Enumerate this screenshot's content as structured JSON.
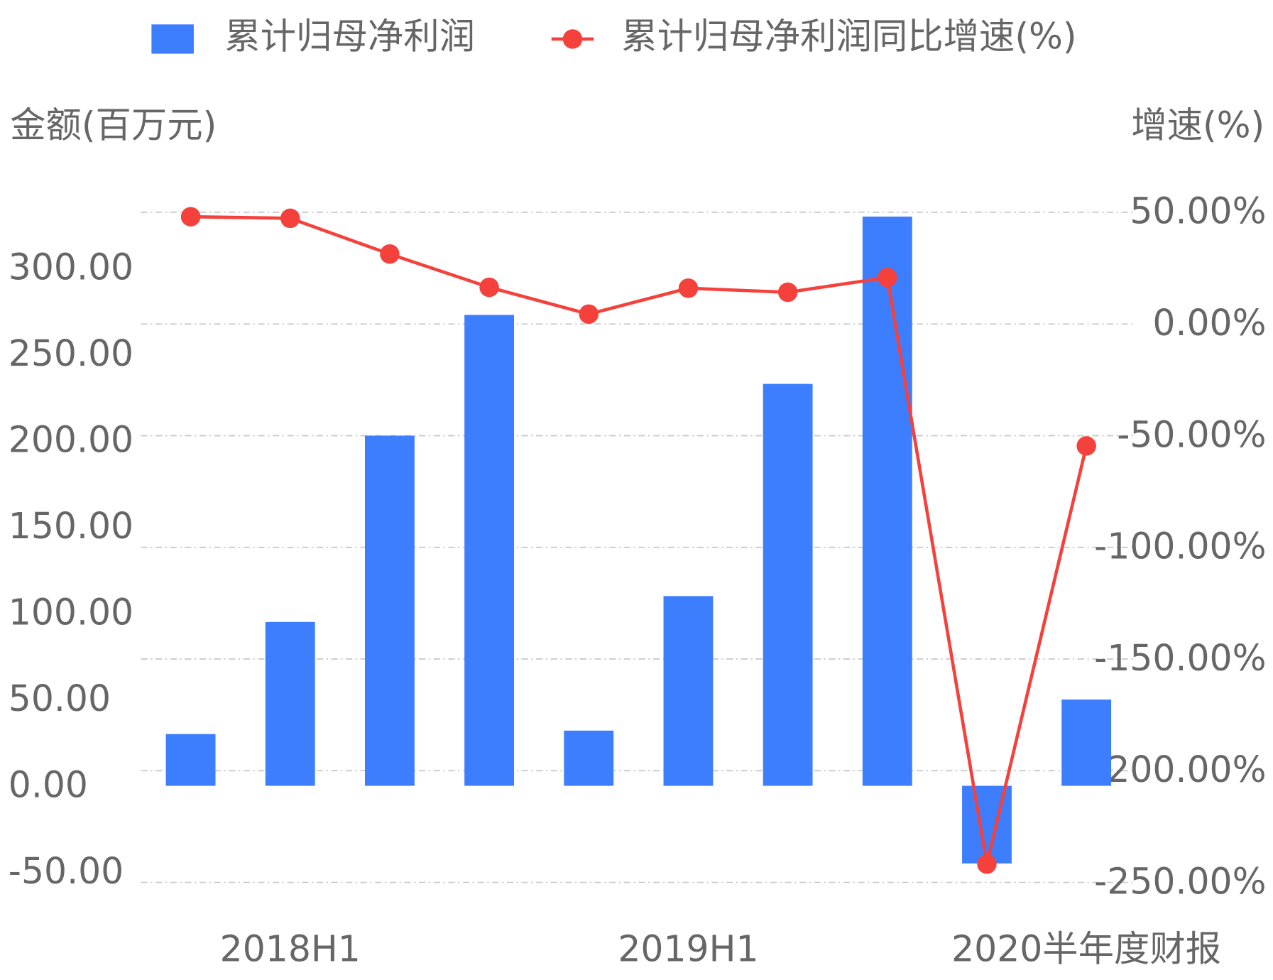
{
  "chart_data": {
    "type": "bar-line",
    "categories": [
      null,
      "2018H1",
      null,
      null,
      null,
      "2019H1",
      null,
      null,
      null,
      "2020半年度财报"
    ],
    "series": [
      {
        "name": "累计归母净利润",
        "color": "#3d7eff",
        "type": "bar",
        "values": [
          30,
          95,
          203,
          273,
          32,
          110,
          233,
          330,
          -45,
          50
        ]
      },
      {
        "name": "累计归母净利润同比增速(%)",
        "color": "#f5413c",
        "type": "line",
        "axis": "y2",
        "values": [
          48,
          47.3,
          31.3,
          16.4,
          4.4,
          16,
          14.2,
          20.8,
          -241.8,
          -54.6
        ]
      }
    ],
    "y_label": "金额(百万元)",
    "y2_label": "增速(%)",
    "ylim": [
      -56,
      332.5
    ],
    "yticks": [
      {
        "value": -50,
        "label": "-50.00"
      },
      {
        "value": 0,
        "label": "0.00"
      },
      {
        "value": 50,
        "label": "50.00"
      },
      {
        "value": 100,
        "label": "100.00"
      },
      {
        "value": 150,
        "label": "150.00"
      },
      {
        "value": 200,
        "label": "200.00"
      },
      {
        "value": 250,
        "label": "250.00"
      },
      {
        "value": 300,
        "label": "300.00"
      }
    ],
    "y2lim": [
      -250,
      50
    ],
    "y2ticks": [
      {
        "value": -250,
        "label": "-250.00%"
      },
      {
        "value": -200,
        "label": "-200.00%"
      },
      {
        "value": -150,
        "label": "-150.00%"
      },
      {
        "value": -100,
        "label": "-100.00%"
      },
      {
        "value": -50,
        "label": "-50.00%"
      },
      {
        "value": 0,
        "label": "0.00%"
      },
      {
        "value": 50,
        "label": "50.00%"
      }
    ],
    "grid": true,
    "legend": "top"
  }
}
